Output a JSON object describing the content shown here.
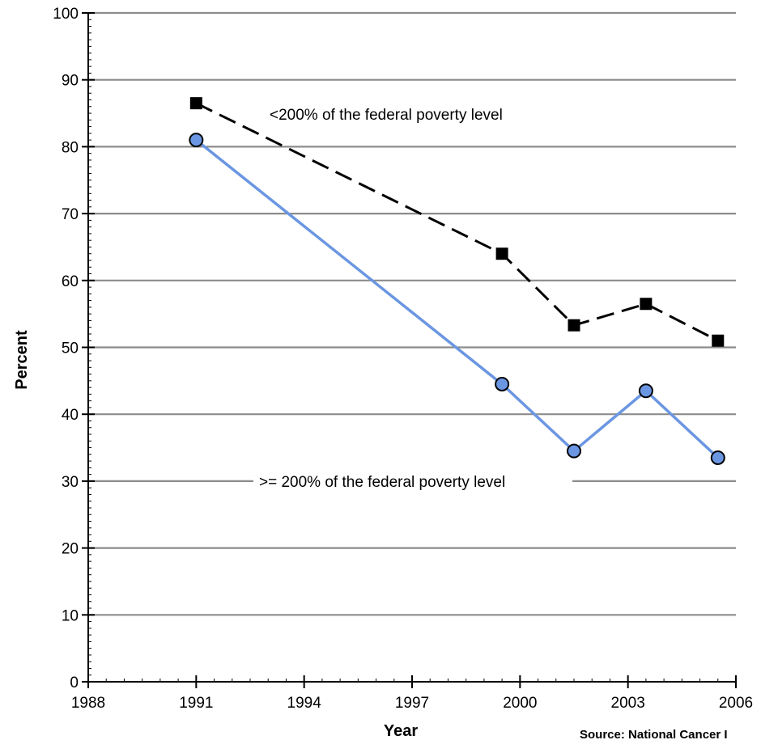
{
  "chart_data": {
    "type": "line",
    "xlabel": "Year",
    "ylabel": "Percent",
    "xlim": [
      1988,
      2006
    ],
    "ylim": [
      0,
      100
    ],
    "x_ticks": [
      1988,
      1991,
      1994,
      1997,
      2000,
      2003,
      2006
    ],
    "y_ticks": [
      0,
      10,
      20,
      30,
      40,
      50,
      60,
      70,
      80,
      90,
      100
    ],
    "grid": "horizontal",
    "series": [
      {
        "name": "<200% of the federal poverty level",
        "color": "#000000",
        "line_style": "dashed",
        "marker": "square",
        "x": [
          1991,
          1999.5,
          2001.5,
          2003.5,
          2005.5
        ],
        "y": [
          86.5,
          64,
          53.3,
          56.5,
          51
        ]
      },
      {
        "name": ">= 200% of the federal poverty level",
        "color": "#6b96e2",
        "line_style": "solid",
        "marker": "circle",
        "x": [
          1991,
          1999.5,
          2001.5,
          2003.5,
          2005.5
        ],
        "y": [
          81,
          44.5,
          34.5,
          43.5,
          33.5
        ]
      }
    ],
    "source": "Source: National Cancer I"
  }
}
